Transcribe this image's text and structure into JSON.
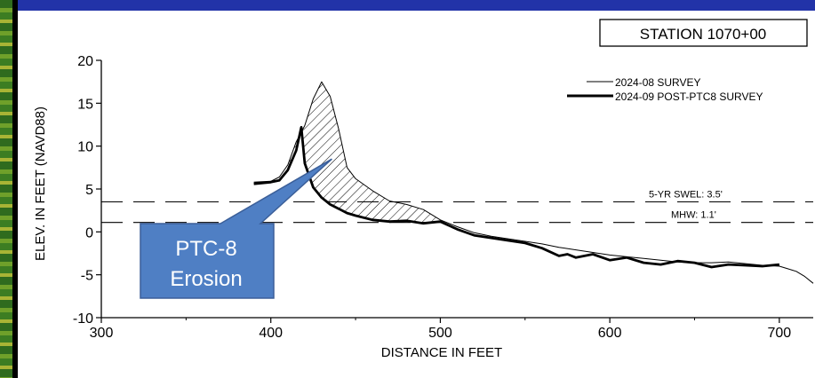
{
  "chart_data": {
    "type": "line",
    "title": "STATION 1070+00",
    "xlabel": "DISTANCE IN FEET",
    "ylabel": "ELEV. IN FEET (NAVD88)",
    "xlim": [
      300,
      720
    ],
    "ylim": [
      -10,
      20
    ],
    "x_ticks": [
      "300",
      "400",
      "500",
      "600",
      "700"
    ],
    "y_ticks": [
      "20",
      "15",
      "10",
      "5",
      "0",
      "-5",
      "-10"
    ],
    "grid": false,
    "legend_position": "top-right",
    "series": [
      {
        "name": "2024-08 SURVEY",
        "style": "thin",
        "x": [
          390,
          400,
          405,
          410,
          415,
          420,
          425,
          430,
          435,
          440,
          445,
          450,
          460,
          470,
          480,
          490,
          500,
          510,
          520,
          530,
          540,
          550,
          560,
          570,
          580,
          590,
          600,
          610,
          620,
          630,
          640,
          650,
          660,
          670,
          680,
          690,
          700,
          705,
          710,
          715,
          720
        ],
        "y": [
          5.8,
          5.9,
          6.4,
          7.8,
          10.5,
          12.4,
          15.5,
          17.5,
          15.8,
          12.0,
          7.5,
          6.2,
          4.8,
          3.6,
          3.2,
          2.6,
          1.4,
          0.6,
          -0.1,
          -0.5,
          -0.8,
          -1.1,
          -1.4,
          -1.8,
          -2.1,
          -2.4,
          -2.7,
          -2.9,
          -3.1,
          -3.3,
          -3.5,
          -3.6,
          -3.6,
          -3.5,
          -3.7,
          -3.9,
          -4.0,
          -4.3,
          -4.6,
          -5.2,
          -6.0
        ]
      },
      {
        "name": "2024-09 POST-PTC8 SURVEY",
        "style": "thick",
        "x": [
          390,
          400,
          405,
          410,
          415,
          418,
          420,
          425,
          430,
          435,
          440,
          445,
          450,
          460,
          470,
          480,
          490,
          495,
          500,
          510,
          520,
          530,
          540,
          550,
          560,
          570,
          575,
          580,
          590,
          600,
          610,
          620,
          630,
          640,
          650,
          660,
          670,
          680,
          690,
          700
        ],
        "y": [
          5.6,
          5.8,
          6.0,
          7.2,
          9.5,
          12.2,
          8.0,
          5.2,
          4.0,
          3.2,
          2.7,
          2.2,
          1.9,
          1.4,
          1.2,
          1.3,
          1.0,
          1.1,
          1.2,
          0.3,
          -0.4,
          -0.7,
          -1.0,
          -1.3,
          -1.9,
          -2.8,
          -2.6,
          -3.0,
          -2.6,
          -3.3,
          -3.0,
          -3.6,
          -3.8,
          -3.4,
          -3.6,
          -4.1,
          -3.8,
          -3.9,
          -4.0,
          -3.8
        ]
      }
    ],
    "reference_lines": [
      {
        "label": "5-YR SWEL: 3.5'",
        "y": 3.5
      },
      {
        "label": "MHW: 1.1'",
        "y": 1.1
      }
    ],
    "callout": {
      "lines": [
        "PTC-8",
        "Erosion"
      ],
      "fill": "#4f7fc4",
      "text_color": "#ffffff"
    }
  }
}
